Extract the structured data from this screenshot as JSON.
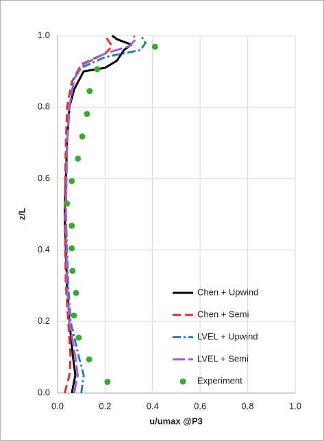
{
  "chart_data": {
    "type": "line",
    "x_label": "u/umax @P3",
    "y_label": "z/L",
    "xlim": [
      0,
      1
    ],
    "ylim": [
      0,
      1
    ],
    "xticks": [
      {
        "value": 0,
        "label": "0.0"
      },
      0.2,
      0.4,
      0.6,
      0.8,
      {
        "value": 1,
        "label": "1.0"
      }
    ],
    "yticks": [
      {
        "value": 0,
        "label": "0.0"
      },
      0.2,
      0.4,
      0.6,
      0.8,
      {
        "value": 1,
        "label": "1.0"
      }
    ],
    "grid": true,
    "legend": "lower right",
    "series": [
      {
        "name": "Chen + Upwind",
        "color": "#000000",
        "dash": "solid",
        "x": [
          0.06,
          0.075,
          0.065,
          0.05,
          0.04,
          0.035,
          0.03,
          0.035,
          0.04,
          0.05,
          0.07,
          0.11,
          0.2,
          0.25,
          0.28,
          0.31,
          0.25,
          0.23
        ],
        "values": [
          0,
          0.05,
          0.1,
          0.2,
          0.3,
          0.4,
          0.5,
          0.6,
          0.7,
          0.8,
          0.85,
          0.9,
          0.91,
          0.93,
          0.96,
          0.975,
          0.99,
          1.0
        ]
      },
      {
        "name": "Chen + Semi",
        "color": "#e0302b",
        "dash": "dash",
        "x": [
          0.03,
          0.05,
          0.055,
          0.045,
          0.035,
          0.03,
          0.035,
          0.04,
          0.06,
          0.1,
          0.2,
          0.23,
          0.21,
          0.2
        ],
        "values": [
          0,
          0.05,
          0.1,
          0.2,
          0.3,
          0.5,
          0.7,
          0.8,
          0.87,
          0.92,
          0.95,
          0.97,
          0.99,
          1.0
        ]
      },
      {
        "name": "LVEL + Upwind",
        "color": "#2b7bba",
        "dash": "dashdot",
        "x": [
          0.1,
          0.11,
          0.09,
          0.055,
          0.045,
          0.035,
          0.04,
          0.05,
          0.07,
          0.1,
          0.2,
          0.35,
          0.37,
          0.35
        ],
        "values": [
          0,
          0.05,
          0.1,
          0.2,
          0.3,
          0.5,
          0.7,
          0.8,
          0.88,
          0.91,
          0.94,
          0.96,
          0.98,
          1.0
        ]
      },
      {
        "name": "LVEL + Semi",
        "color": "#9b5fd0",
        "dash": "longdash",
        "x": [
          0.07,
          0.085,
          0.075,
          0.05,
          0.04,
          0.035,
          0.04,
          0.05,
          0.07,
          0.11,
          0.2,
          0.3,
          0.33,
          0.32
        ],
        "values": [
          0,
          0.05,
          0.1,
          0.2,
          0.3,
          0.5,
          0.7,
          0.8,
          0.88,
          0.92,
          0.95,
          0.97,
          0.99,
          1.0
        ]
      },
      {
        "name": "Experiment",
        "color": "#3aaa35",
        "dash": "none",
        "marker": "circle",
        "x": [
          0.41,
          0.167,
          0.135,
          0.124,
          0.104,
          0.086,
          0.06,
          0.04,
          0.06,
          0.06,
          0.063,
          0.078,
          0.069,
          0.089,
          0.133,
          0.21
        ],
        "values": [
          0.969,
          0.906,
          0.845,
          0.781,
          0.718,
          0.656,
          0.593,
          0.53,
          0.468,
          0.405,
          0.342,
          0.28,
          0.217,
          0.155,
          0.094,
          0.031
        ]
      }
    ]
  }
}
